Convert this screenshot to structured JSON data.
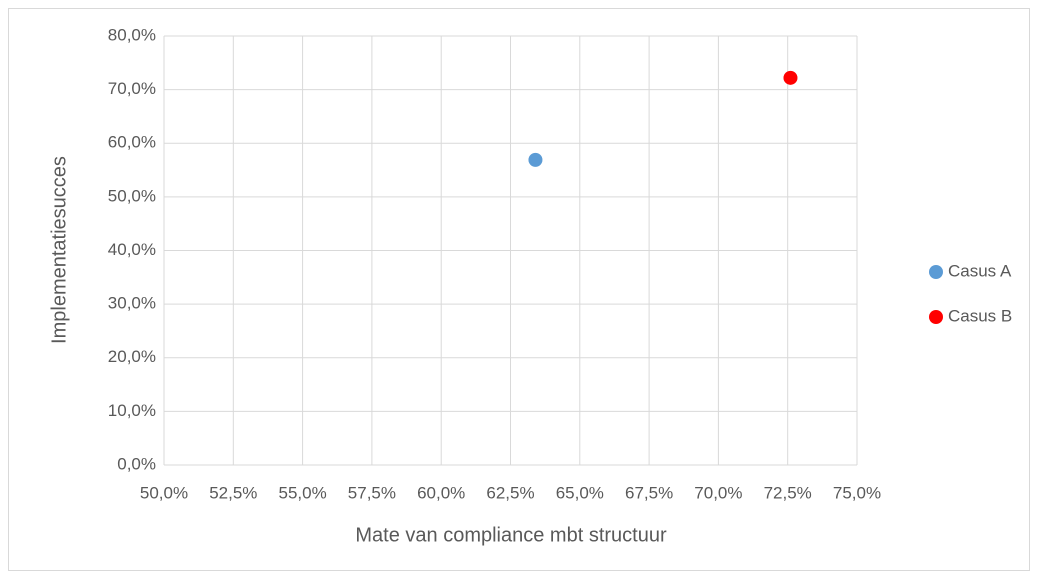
{
  "chart_data": {
    "type": "scatter",
    "x_label": "Mate van compliance mbt structuur",
    "y_label": "Implementatiesucces",
    "series": [
      {
        "name": "Casus A",
        "color": "#5b9bd5",
        "x": [
          63.4
        ],
        "values": [
          56.9
        ]
      },
      {
        "name": "Casus B",
        "color": "#ff0000",
        "x": [
          72.6
        ],
        "values": [
          72.2
        ]
      }
    ],
    "xlim": [
      50,
      75
    ],
    "xticks": [
      {
        "value": 50,
        "label": "50,0%"
      },
      {
        "value": 52.5,
        "label": "52,5%"
      },
      {
        "value": 55,
        "label": "55,0%"
      },
      {
        "value": 57.5,
        "label": "57,5%"
      },
      {
        "value": 60,
        "label": "60,0%"
      },
      {
        "value": 62.5,
        "label": "62,5%"
      },
      {
        "value": 65,
        "label": "65,0%"
      },
      {
        "value": 67.5,
        "label": "67,5%"
      },
      {
        "value": 70,
        "label": "70,0%"
      },
      {
        "value": 72.5,
        "label": "72,5%"
      },
      {
        "value": 75,
        "label": "75,0%"
      }
    ],
    "ylim": [
      0,
      80
    ],
    "yticks": [
      {
        "value": 0,
        "label": "0,0%"
      },
      {
        "value": 10,
        "label": "10,0%"
      },
      {
        "value": 20,
        "label": "20,0%"
      },
      {
        "value": 30,
        "label": "30,0%"
      },
      {
        "value": 40,
        "label": "40,0%"
      },
      {
        "value": 50,
        "label": "50,0%"
      },
      {
        "value": 60,
        "label": "60,0%"
      },
      {
        "value": 70,
        "label": "70,0%"
      },
      {
        "value": 80,
        "label": "80,0%"
      }
    ],
    "grid": true,
    "legend": "right"
  }
}
